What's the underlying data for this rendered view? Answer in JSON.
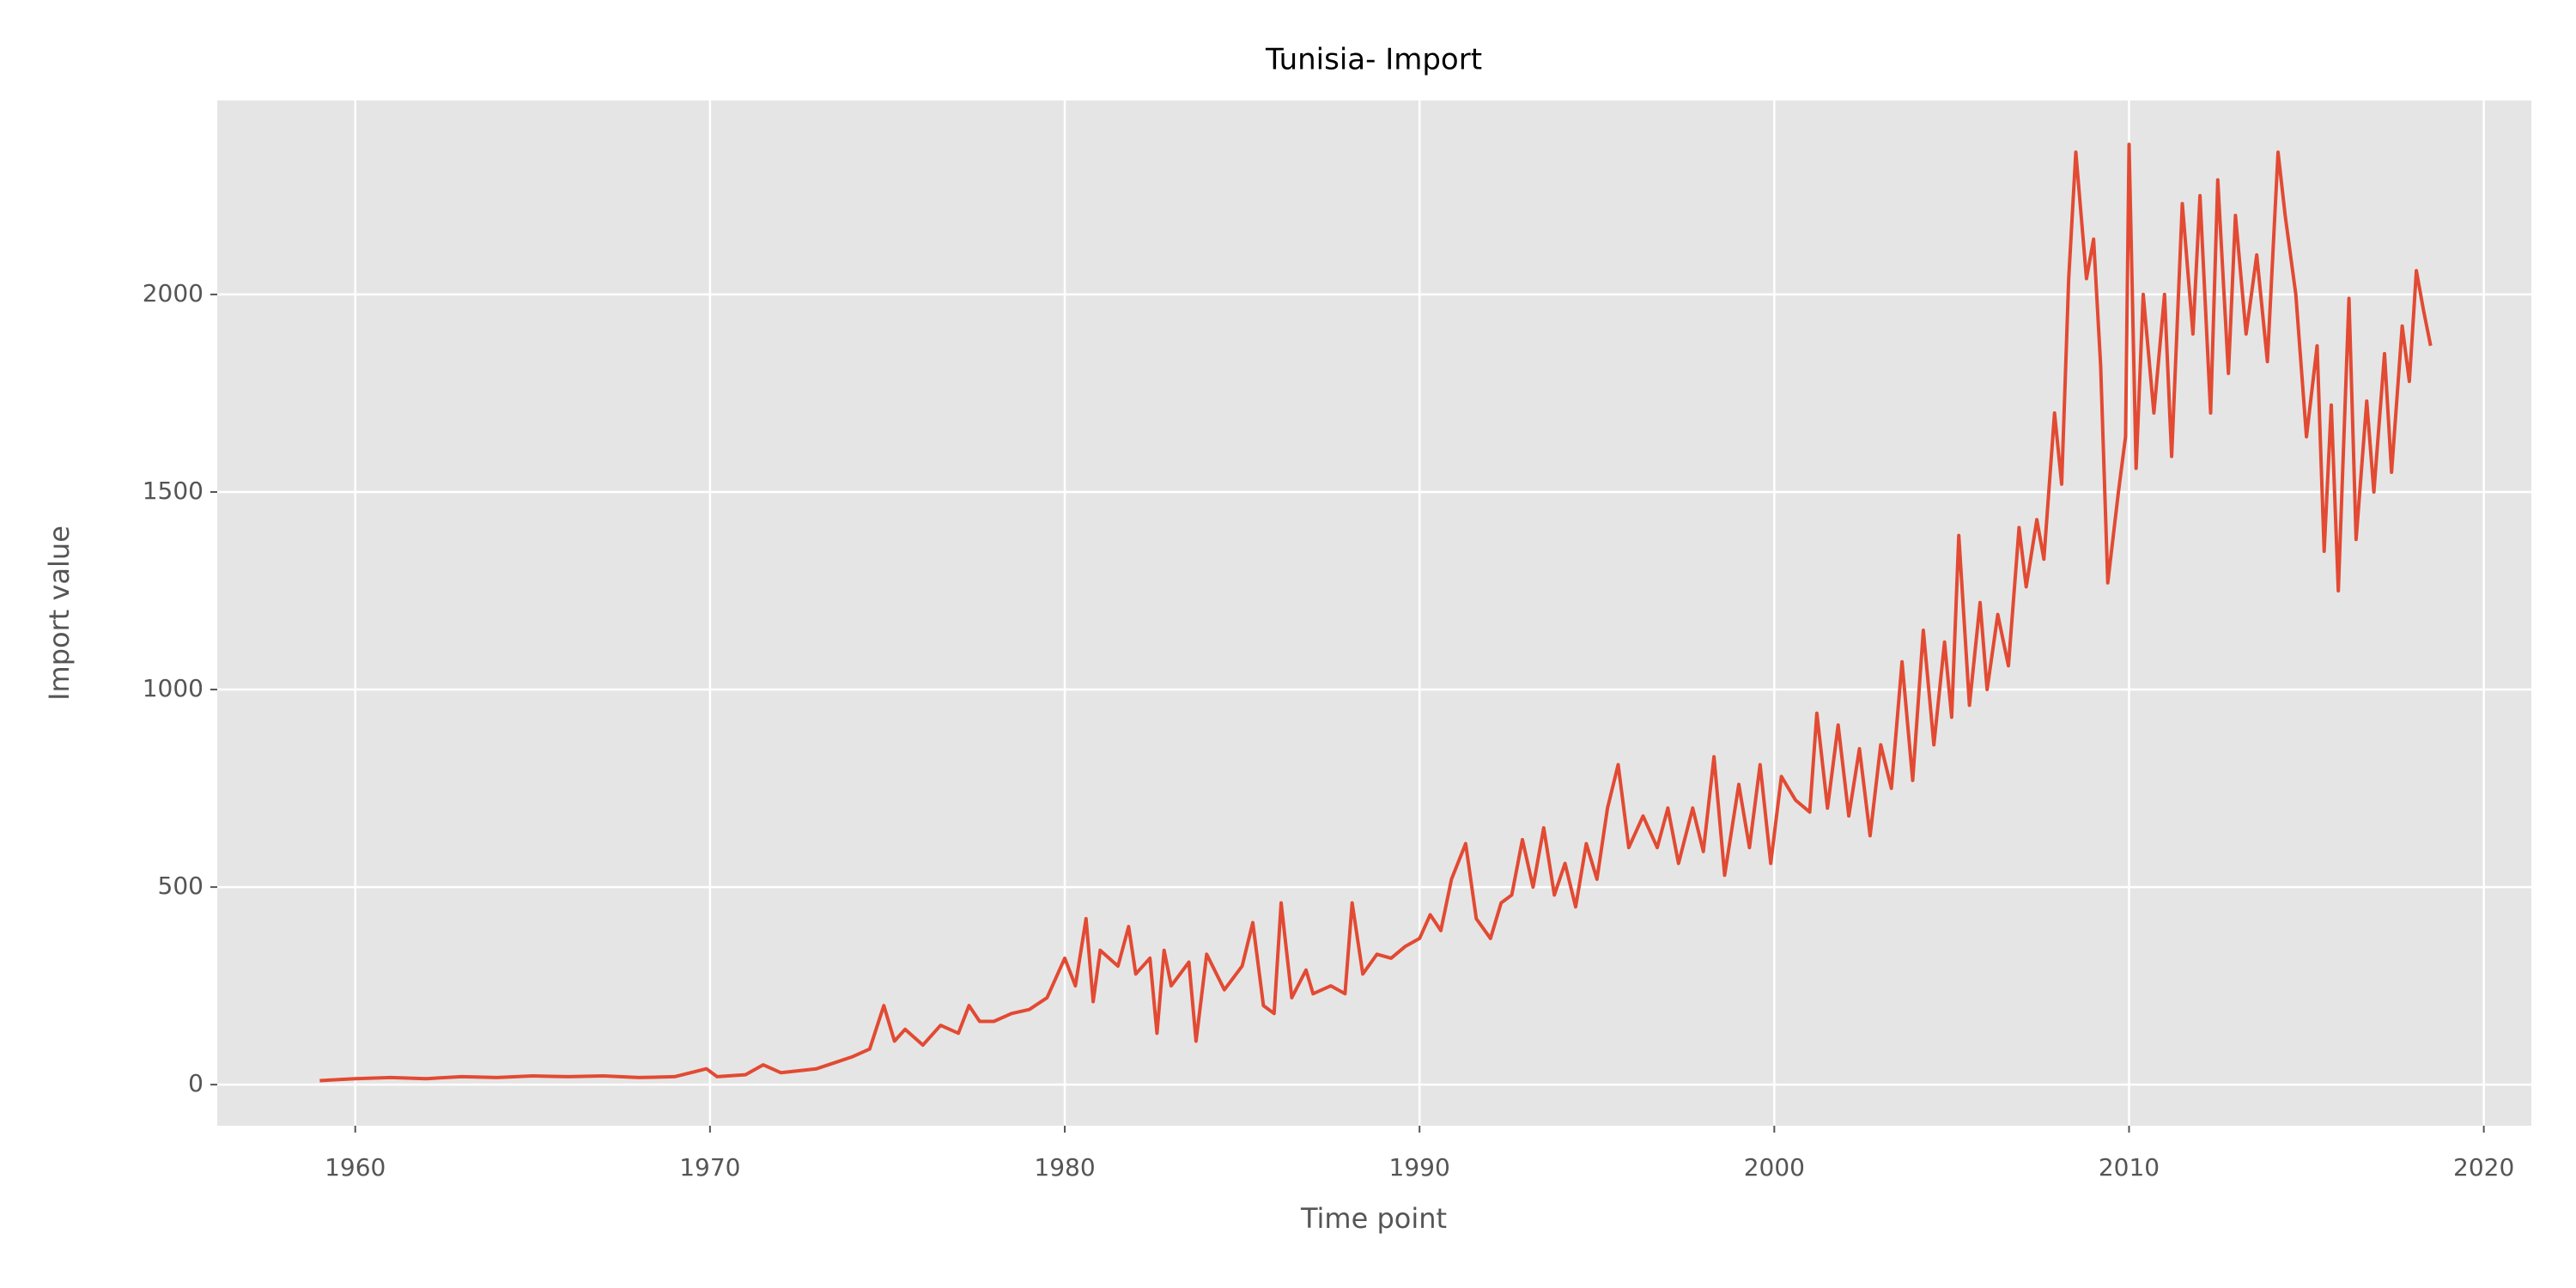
{
  "chart_data": {
    "type": "line",
    "title": "Tunisia- Import",
    "x_label": "Time point",
    "y_label": "Import value",
    "x": [
      1959,
      1960,
      1961,
      1962,
      1963,
      1964,
      1965,
      1966,
      1967,
      1968,
      1969,
      1969.9,
      1970.2,
      1971,
      1971.5,
      1972,
      1973,
      1973.5,
      1974,
      1974.5,
      1974.9,
      1975.2,
      1975.5,
      1976,
      1976.5,
      1977,
      1977.3,
      1977.6,
      1978,
      1978.5,
      1979,
      1979.5,
      1980,
      1980.3,
      1980.6,
      1980.8,
      1981,
      1981.5,
      1981.8,
      1982,
      1982.4,
      1982.6,
      1982.8,
      1983,
      1983.5,
      1983.7,
      1984,
      1984.5,
      1985,
      1985.3,
      1985.6,
      1985.9,
      1986.1,
      1986.4,
      1986.8,
      1987,
      1987.5,
      1987.9,
      1988.1,
      1988.4,
      1988.8,
      1989.2,
      1989.6,
      1990,
      1990.3,
      1990.6,
      1990.9,
      1991.3,
      1991.6,
      1992,
      1992.3,
      1992.6,
      1992.9,
      1993.2,
      1993.5,
      1993.8,
      1994.1,
      1994.4,
      1994.7,
      1995,
      1995.3,
      1995.6,
      1995.9,
      1996.3,
      1996.7,
      1997,
      1997.3,
      1997.7,
      1998,
      1998.3,
      1998.6,
      1999,
      1999.3,
      1999.6,
      1999.9,
      2000.2,
      2000.6,
      2001,
      2001.2,
      2001.5,
      2001.8,
      2002.1,
      2002.4,
      2002.7,
      2003,
      2003.3,
      2003.6,
      2003.9,
      2004.2,
      2004.5,
      2004.8,
      2005,
      2005.2,
      2005.5,
      2005.8,
      2006,
      2006.3,
      2006.6,
      2006.9,
      2007.1,
      2007.4,
      2007.6,
      2007.9,
      2008.1,
      2008.3,
      2008.5,
      2008.8,
      2009,
      2009.2,
      2009.4,
      2009.7,
      2009.9,
      2010,
      2010.2,
      2010.4,
      2010.7,
      2011,
      2011.2,
      2011.5,
      2011.8,
      2012,
      2012.3,
      2012.5,
      2012.8,
      2013,
      2013.3,
      2013.6,
      2013.9,
      2014.2,
      2014.4,
      2014.7,
      2015,
      2015.3,
      2015.5,
      2015.7,
      2015.9,
      2016.2,
      2016.4,
      2016.7,
      2016.9,
      2017.2,
      2017.4,
      2017.7,
      2017.9,
      2018.1,
      2018.3,
      2018.5
    ],
    "series": [
      {
        "name": "Import",
        "color": "#e24a33",
        "values": [
          10,
          15,
          18,
          15,
          20,
          18,
          22,
          20,
          22,
          18,
          20,
          40,
          20,
          25,
          50,
          30,
          40,
          55,
          70,
          90,
          200,
          110,
          140,
          100,
          150,
          130,
          200,
          160,
          160,
          180,
          190,
          220,
          320,
          250,
          420,
          210,
          340,
          300,
          400,
          280,
          320,
          130,
          340,
          250,
          310,
          110,
          330,
          240,
          300,
          410,
          200,
          180,
          460,
          220,
          290,
          230,
          250,
          230,
          460,
          280,
          330,
          320,
          350,
          370,
          430,
          390,
          520,
          610,
          420,
          370,
          460,
          480,
          620,
          500,
          650,
          480,
          560,
          450,
          610,
          520,
          700,
          810,
          600,
          680,
          600,
          700,
          560,
          700,
          590,
          830,
          530,
          760,
          600,
          810,
          560,
          780,
          720,
          690,
          940,
          700,
          910,
          680,
          850,
          630,
          860,
          750,
          1070,
          770,
          1150,
          860,
          1120,
          930,
          1390,
          960,
          1220,
          1000,
          1190,
          1060,
          1410,
          1260,
          1430,
          1330,
          1700,
          1520,
          2040,
          2360,
          2040,
          2140,
          1820,
          1270,
          1500,
          1640,
          2380,
          1560,
          2000,
          1700,
          2000,
          1590,
          2230,
          1900,
          2250,
          1700,
          2290,
          1800,
          2200,
          1900,
          2100,
          1830,
          2360,
          2200,
          2000,
          1640,
          1870,
          1350,
          1720,
          1250,
          1990,
          1380,
          1730,
          1500,
          1850,
          1550,
          1920,
          1780,
          2060,
          1960,
          1870
        ]
      }
    ],
    "xlim": [
      1956.11,
      2021.34
    ],
    "ylim": [
      -104,
      2491
    ],
    "xticks": [
      1960,
      1970,
      1980,
      1990,
      2000,
      2010,
      2020
    ],
    "yticks": [
      0,
      500,
      1000,
      1500,
      2000
    ],
    "grid": true,
    "background": "#e5e5e5",
    "grid_color": "#ffffff"
  }
}
